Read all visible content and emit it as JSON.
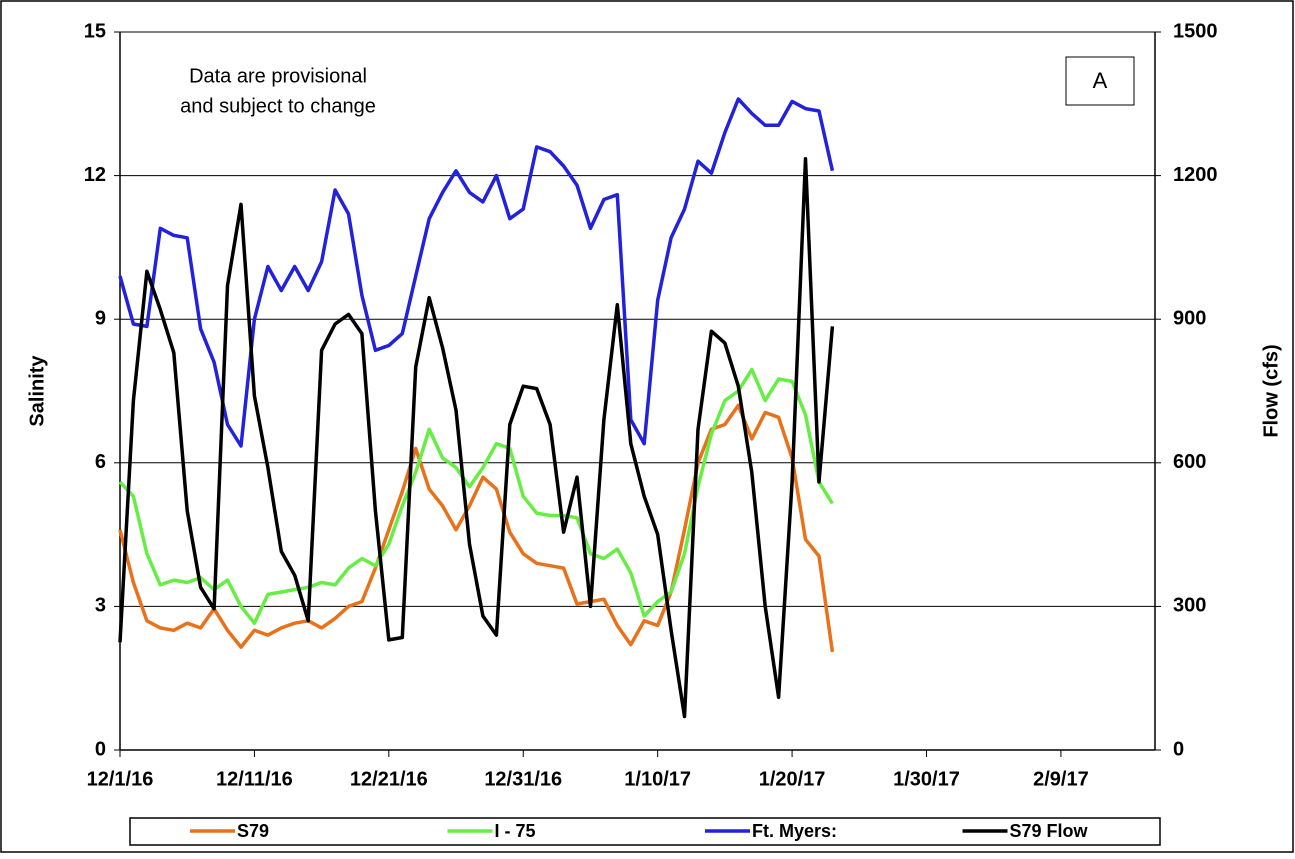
{
  "chart_data": {
    "type": "line",
    "ylabel": "Salinity",
    "y2label": "Flow (cfs)",
    "annotation": [
      "Data are provisional",
      "and subject to change"
    ],
    "panel_label": "A",
    "x": [
      "12/1/16",
      "12/2/16",
      "12/3/16",
      "12/4/16",
      "12/5/16",
      "12/6/16",
      "12/7/16",
      "12/8/16",
      "12/9/16",
      "12/10/16",
      "12/11/16",
      "12/12/16",
      "12/13/16",
      "12/14/16",
      "12/15/16",
      "12/16/16",
      "12/17/16",
      "12/18/16",
      "12/19/16",
      "12/20/16",
      "12/21/16",
      "12/22/16",
      "12/23/16",
      "12/24/16",
      "12/25/16",
      "12/26/16",
      "12/27/16",
      "12/28/16",
      "12/29/16",
      "12/30/16",
      "12/31/16",
      "1/1/17",
      "1/2/17",
      "1/3/17",
      "1/4/17",
      "1/5/17",
      "1/6/17",
      "1/7/17",
      "1/8/17",
      "1/9/17",
      "1/10/17",
      "1/11/17",
      "1/12/17",
      "1/13/17",
      "1/14/17",
      "1/15/17",
      "1/16/17",
      "1/17/17",
      "1/18/17",
      "1/19/17",
      "1/20/17",
      "1/21/17",
      "1/22/17",
      "1/23/17"
    ],
    "xlim": [
      "12/1/16",
      "2/16/17"
    ],
    "xticks": [
      "12/1/16",
      "12/11/16",
      "12/21/16",
      "12/31/16",
      "1/10/17",
      "1/20/17",
      "1/30/17",
      "2/9/17"
    ],
    "ylim": [
      0,
      15
    ],
    "yticks": [
      0,
      3,
      6,
      9,
      12,
      15
    ],
    "y2lim": [
      0,
      1500
    ],
    "y2ticks": [
      0,
      300,
      600,
      900,
      1200,
      1500
    ],
    "grid": true,
    "legend": "bottom",
    "series": [
      {
        "name": "S79",
        "color": "#e8711a",
        "values": [
          4.6,
          3.5,
          2.7,
          2.55,
          2.5,
          2.65,
          2.55,
          2.95,
          2.5,
          2.15,
          2.5,
          2.4,
          2.55,
          2.65,
          2.7,
          2.55,
          2.75,
          3.0,
          3.1,
          3.8,
          4.6,
          5.4,
          6.3,
          5.45,
          5.1,
          4.6,
          5.1,
          5.7,
          5.45,
          4.55,
          4.1,
          3.9,
          3.85,
          3.8,
          3.05,
          3.1,
          3.15,
          2.6,
          2.2,
          2.7,
          2.6,
          3.3,
          4.6,
          6.0,
          6.7,
          6.8,
          7.2,
          6.5,
          7.05,
          6.95,
          6.1,
          4.4,
          4.05,
          2.05
        ]
      },
      {
        "name": "I - 75",
        "color": "#66ee44",
        "values": [
          5.6,
          5.3,
          4.1,
          3.45,
          3.55,
          3.5,
          3.6,
          3.35,
          3.55,
          3.0,
          2.65,
          3.25,
          3.3,
          3.35,
          3.4,
          3.5,
          3.45,
          3.8,
          4.0,
          3.85,
          4.3,
          5.1,
          5.8,
          6.7,
          6.1,
          5.9,
          5.5,
          5.9,
          6.4,
          6.3,
          5.3,
          4.95,
          4.9,
          4.9,
          4.85,
          4.1,
          4.0,
          4.2,
          3.7,
          2.8,
          3.1,
          3.3,
          4.1,
          5.5,
          6.6,
          7.3,
          7.5,
          7.95,
          7.3,
          7.75,
          7.7,
          7.0,
          5.6,
          5.15
        ]
      },
      {
        "name": "Ft. Myers:",
        "color": "#2222dd",
        "values": [
          9.9,
          8.9,
          8.85,
          10.9,
          10.75,
          10.7,
          8.8,
          8.1,
          6.8,
          6.35,
          9.0,
          10.1,
          9.6,
          10.1,
          9.6,
          10.2,
          11.7,
          11.2,
          9.5,
          8.35,
          8.45,
          8.7,
          9.9,
          11.1,
          11.65,
          12.1,
          11.65,
          11.45,
          12.0,
          11.1,
          11.3,
          12.6,
          12.5,
          12.2,
          11.8,
          10.9,
          11.5,
          11.6,
          6.9,
          6.4,
          9.4,
          10.7,
          11.3,
          12.3,
          12.05,
          12.9,
          13.6,
          13.3,
          13.05,
          13.05,
          13.55,
          13.4,
          13.35,
          12.1
        ]
      },
      {
        "name": "S79 Flow",
        "color": "#000000",
        "axis": "y2",
        "values": [
          225,
          730,
          1000,
          920,
          830,
          500,
          340,
          295,
          970,
          1140,
          740,
          590,
          415,
          365,
          270,
          835,
          890,
          910,
          870,
          500,
          230,
          235,
          800,
          945,
          840,
          710,
          430,
          280,
          240,
          680,
          760,
          755,
          680,
          455,
          570,
          300,
          690,
          930,
          640,
          530,
          450,
          250,
          70,
          670,
          875,
          850,
          760,
          580,
          300,
          110,
          560,
          1235,
          560,
          885
        ]
      }
    ]
  }
}
